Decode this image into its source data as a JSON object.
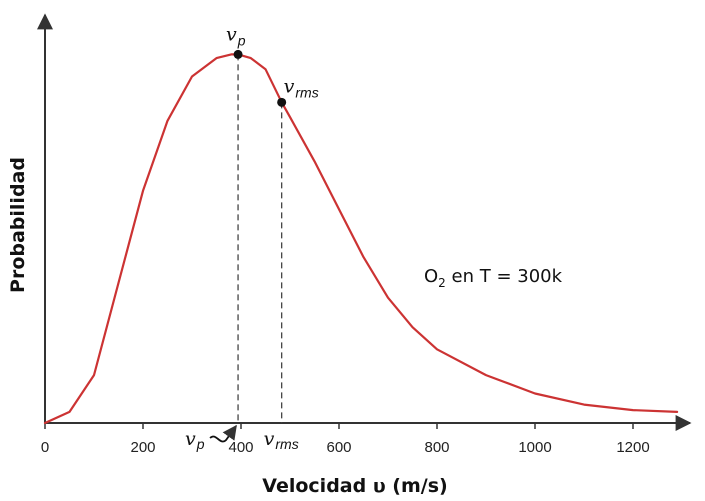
{
  "chart_data": {
    "type": "line",
    "title": "",
    "xlabel": "Velocidad υ (m/s)",
    "ylabel": "Probabilidad",
    "xlim": [
      0,
      1300
    ],
    "ylim": [
      0,
      1.05
    ],
    "x_ticks": [
      0,
      200,
      400,
      600,
      800,
      1000,
      1200
    ],
    "grid": false,
    "series": [
      {
        "color": "#cc3333",
        "x": [
          0,
          50,
          100,
          150,
          200,
          250,
          300,
          350,
          380,
          394,
          420,
          450,
          483,
          500,
          550,
          600,
          650,
          700,
          750,
          800,
          900,
          1000,
          1100,
          1200,
          1290
        ],
        "y": [
          0,
          0.03,
          0.13,
          0.38,
          0.63,
          0.82,
          0.94,
          0.99,
          1.0,
          1.0,
          0.99,
          0.96,
          0.87,
          0.83,
          0.71,
          0.58,
          0.45,
          0.34,
          0.26,
          0.2,
          0.13,
          0.08,
          0.05,
          0.035,
          0.03
        ]
      }
    ],
    "markers": [
      {
        "id": "vp",
        "symbol": "v",
        "sub": "p",
        "x": 394,
        "y": 1.0
      },
      {
        "id": "vrms",
        "symbol": "v",
        "sub": "rms",
        "x": 483,
        "y": 0.87
      }
    ],
    "axis_markers": [
      {
        "symbol": "v",
        "sub": "p",
        "x": 394
      },
      {
        "symbol": "v",
        "sub": "rms",
        "x": 483
      }
    ],
    "annotation": {
      "prefix": "O",
      "sub": "2",
      "suffix": " en T = 300k"
    }
  }
}
